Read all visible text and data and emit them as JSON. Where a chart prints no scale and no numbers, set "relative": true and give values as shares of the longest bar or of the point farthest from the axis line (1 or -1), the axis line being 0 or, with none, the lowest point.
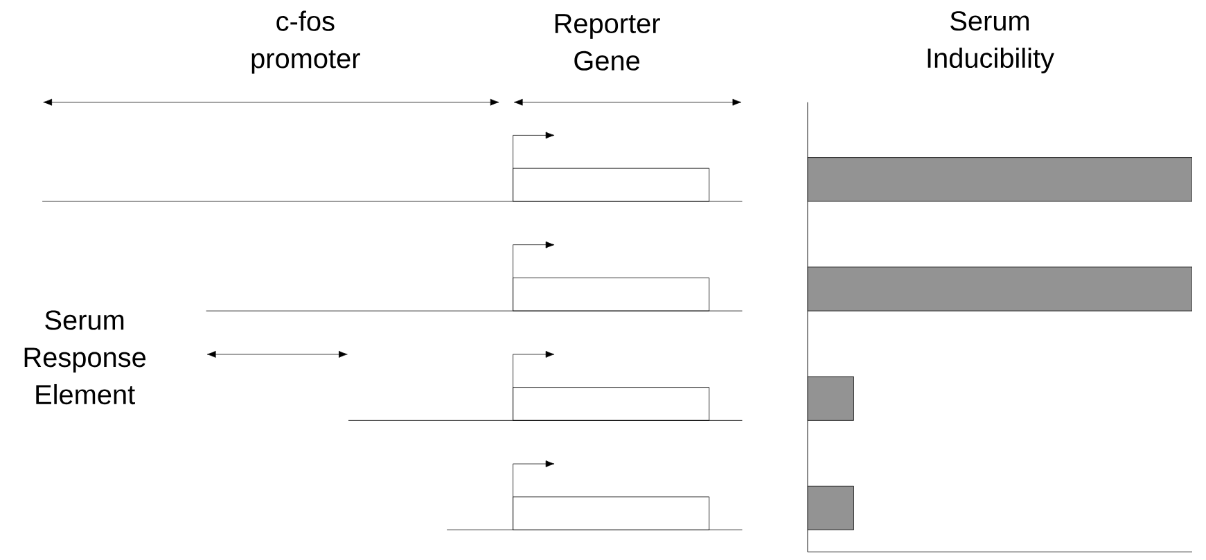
{
  "chart_data": {
    "type": "bar",
    "orientation": "horizontal",
    "relative": true,
    "title": "Serum Inducibility",
    "categories": [
      null,
      null,
      null,
      null
    ],
    "values": [
      1,
      1,
      0.12,
      0.12
    ],
    "color": "#939393",
    "annotations": [
      "c-fos promoter",
      "Reporter Gene",
      "Serum Response Element"
    ]
  }
}
